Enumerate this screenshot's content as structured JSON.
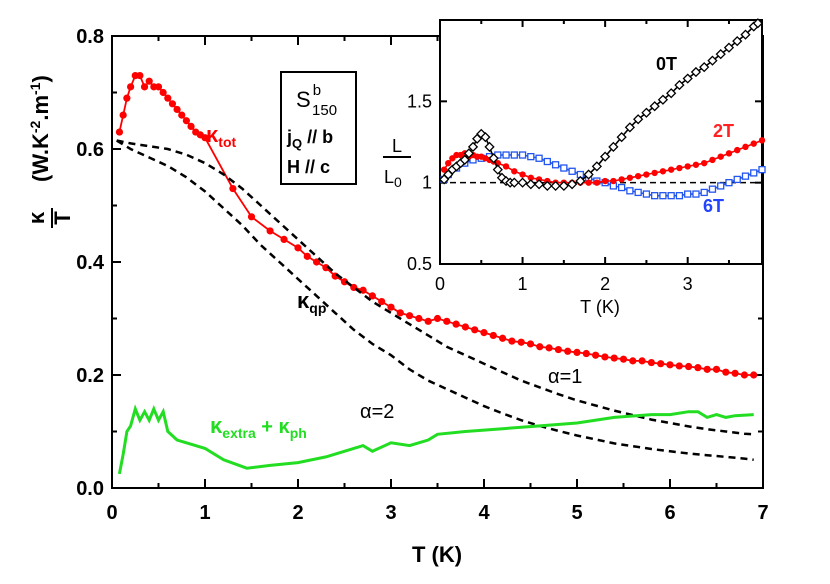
{
  "chart_data": [
    {
      "type": "line",
      "role": "main",
      "xlabel": "T (K)",
      "ylabel": "κ/T (W.K^-2.m^-1)",
      "ylabel_parts": {
        "numerator": "κ",
        "denominator": "T",
        "units": "(W.K",
        "exp1": "-2",
        "mid": ".m",
        "exp2": "-1",
        "close": ")"
      },
      "xlim": [
        0,
        7
      ],
      "ylim": [
        0,
        0.8
      ],
      "xticks": [
        0,
        1,
        2,
        3,
        4,
        5,
        6,
        7
      ],
      "xtick_labels": [
        "0",
        "1",
        "2",
        "3",
        "4",
        "5",
        "6",
        "7"
      ],
      "yticks": [
        0.0,
        0.2,
        0.4,
        0.6,
        0.8
      ],
      "ytick_labels": [
        "0.0",
        "0.2",
        "0.4",
        "0.6",
        "0.8"
      ],
      "series": [
        {
          "name": "κ_tot",
          "label_main": "κ",
          "label_sub": "tot",
          "color": "#ff0000",
          "style": "line+markers",
          "x": [
            0.08,
            0.12,
            0.16,
            0.2,
            0.25,
            0.3,
            0.35,
            0.4,
            0.45,
            0.5,
            0.55,
            0.6,
            0.65,
            0.7,
            0.75,
            0.8,
            0.85,
            0.9,
            0.95,
            1.0,
            1.3,
            1.5,
            1.7,
            1.85,
            2.0,
            2.1,
            2.2,
            2.3,
            2.4,
            2.5,
            2.6,
            2.7,
            2.8,
            2.9,
            3.0,
            3.1,
            3.2,
            3.3,
            3.4,
            3.5,
            3.6,
            3.7,
            3.8,
            3.9,
            4.0,
            4.1,
            4.2,
            4.3,
            4.4,
            4.5,
            4.6,
            4.7,
            4.8,
            4.9,
            5.0,
            5.1,
            5.2,
            5.3,
            5.4,
            5.5,
            5.6,
            5.7,
            5.8,
            5.9,
            6.0,
            6.1,
            6.2,
            6.3,
            6.4,
            6.5,
            6.6,
            6.7,
            6.8,
            6.9
          ],
          "y": [
            0.63,
            0.66,
            0.69,
            0.71,
            0.73,
            0.73,
            0.71,
            0.72,
            0.71,
            0.71,
            0.7,
            0.69,
            0.68,
            0.67,
            0.66,
            0.65,
            0.64,
            0.63,
            0.625,
            0.62,
            0.53,
            0.48,
            0.455,
            0.44,
            0.425,
            0.41,
            0.4,
            0.39,
            0.375,
            0.365,
            0.355,
            0.35,
            0.34,
            0.33,
            0.32,
            0.31,
            0.305,
            0.3,
            0.295,
            0.3,
            0.295,
            0.29,
            0.285,
            0.28,
            0.275,
            0.27,
            0.265,
            0.26,
            0.258,
            0.255,
            0.25,
            0.248,
            0.245,
            0.242,
            0.24,
            0.238,
            0.235,
            0.232,
            0.23,
            0.228,
            0.225,
            0.225,
            0.222,
            0.22,
            0.218,
            0.216,
            0.215,
            0.213,
            0.21,
            0.21,
            0.205,
            0.203,
            0.2,
            0.2
          ]
        },
        {
          "name": "κ_qp α=1",
          "label": "α=1",
          "color": "#000000",
          "style": "dashed",
          "x": [
            0.05,
            0.2,
            0.4,
            0.6,
            0.8,
            1.0,
            1.2,
            1.4,
            1.6,
            1.8,
            2.0,
            2.2,
            2.4,
            2.6,
            2.8,
            3.0,
            3.2,
            3.4,
            3.6,
            3.8,
            4.0,
            4.2,
            4.4,
            4.6,
            4.8,
            5.0,
            5.2,
            5.4,
            5.6,
            5.8,
            6.0,
            6.2,
            6.4,
            6.6,
            6.8,
            6.9
          ],
          "y": [
            0.615,
            0.61,
            0.605,
            0.6,
            0.59,
            0.575,
            0.555,
            0.53,
            0.5,
            0.47,
            0.44,
            0.41,
            0.38,
            0.355,
            0.33,
            0.31,
            0.29,
            0.27,
            0.25,
            0.235,
            0.22,
            0.205,
            0.19,
            0.178,
            0.166,
            0.155,
            0.146,
            0.137,
            0.129,
            0.121,
            0.115,
            0.109,
            0.104,
            0.1,
            0.096,
            0.095
          ]
        },
        {
          "name": "κ_qp α=2",
          "label": "α=2",
          "color": "#000000",
          "style": "dashed",
          "x": [
            0.05,
            0.2,
            0.4,
            0.6,
            0.8,
            1.0,
            1.2,
            1.4,
            1.6,
            1.8,
            2.0,
            2.2,
            2.4,
            2.6,
            2.8,
            3.0,
            3.2,
            3.4,
            3.6,
            3.8,
            4.0,
            4.2,
            4.4,
            4.6,
            4.8,
            5.0,
            5.2,
            5.4,
            5.6,
            5.8,
            6.0,
            6.2,
            6.4,
            6.6,
            6.8,
            6.9
          ],
          "y": [
            0.615,
            0.6,
            0.585,
            0.57,
            0.55,
            0.525,
            0.495,
            0.465,
            0.43,
            0.4,
            0.37,
            0.34,
            0.31,
            0.28,
            0.255,
            0.235,
            0.21,
            0.19,
            0.175,
            0.16,
            0.145,
            0.132,
            0.12,
            0.11,
            0.101,
            0.093,
            0.086,
            0.079,
            0.074,
            0.069,
            0.065,
            0.061,
            0.058,
            0.055,
            0.052,
            0.05
          ]
        },
        {
          "name": "κ_extra + κ_ph",
          "label_main": "κ",
          "label_sub": "extra",
          "label_mid": " + κ",
          "label_sub2": "ph",
          "color": "#22dd22",
          "style": "line",
          "x": [
            0.08,
            0.12,
            0.16,
            0.2,
            0.25,
            0.3,
            0.35,
            0.4,
            0.45,
            0.5,
            0.55,
            0.6,
            0.7,
            0.8,
            1.0,
            1.2,
            1.45,
            1.7,
            2.0,
            2.3,
            2.6,
            2.7,
            2.8,
            3.0,
            3.2,
            3.4,
            3.5,
            3.8,
            4.2,
            4.6,
            5.0,
            5.4,
            5.8,
            6.0,
            6.2,
            6.3,
            6.4,
            6.5,
            6.6,
            6.7,
            6.9
          ],
          "y": [
            0.025,
            0.06,
            0.1,
            0.11,
            0.14,
            0.12,
            0.135,
            0.12,
            0.14,
            0.12,
            0.135,
            0.1,
            0.085,
            0.08,
            0.07,
            0.05,
            0.035,
            0.04,
            0.045,
            0.055,
            0.07,
            0.075,
            0.065,
            0.08,
            0.075,
            0.085,
            0.095,
            0.1,
            0.105,
            0.11,
            0.115,
            0.125,
            0.13,
            0.13,
            0.135,
            0.135,
            0.125,
            0.13,
            0.125,
            0.128,
            0.13
          ]
        }
      ],
      "annotations": {
        "kqp_main": "κ",
        "kqp_sub": "qp",
        "alpha1": "α=1",
        "alpha2": "α=2",
        "box_line1_main": "S",
        "box_line1_sup": "b",
        "box_line1_sub": "150",
        "box_line2_main": "j",
        "box_line2_sub": "Q",
        "box_line2_rest": " // b",
        "box_line3": "H // c"
      }
    },
    {
      "type": "line",
      "role": "inset",
      "xlabel": "T (K)",
      "ylabel_num": "L",
      "ylabel_den_main": "L",
      "ylabel_den_sub": "0",
      "xlim": [
        0,
        3.9
      ],
      "ylim": [
        0.5,
        2.0
      ],
      "xticks": [
        0,
        1,
        2,
        3
      ],
      "xtick_labels": [
        "0",
        "1",
        "2",
        "3"
      ],
      "yticks": [
        0.5,
        1,
        1.5
      ],
      "ytick_labels": [
        "0.5",
        "1",
        "1.5"
      ],
      "reference_line": 1.0,
      "series": [
        {
          "name": "0T",
          "label": "0T",
          "label_color": "#000000",
          "color": "#000000",
          "marker": "diamond",
          "x": [
            0.05,
            0.1,
            0.15,
            0.2,
            0.25,
            0.3,
            0.35,
            0.4,
            0.45,
            0.5,
            0.55,
            0.6,
            0.65,
            0.7,
            0.75,
            0.8,
            0.85,
            0.9,
            1.0,
            1.1,
            1.2,
            1.3,
            1.4,
            1.5,
            1.6,
            1.7,
            1.8,
            1.9,
            2.0,
            2.1,
            2.2,
            2.3,
            2.4,
            2.5,
            2.6,
            2.7,
            2.8,
            2.9,
            3.0,
            3.1,
            3.2,
            3.3,
            3.4,
            3.5,
            3.6,
            3.7,
            3.8,
            3.85
          ],
          "y": [
            1.02,
            1.05,
            1.08,
            1.1,
            1.12,
            1.14,
            1.18,
            1.22,
            1.27,
            1.3,
            1.28,
            1.22,
            1.15,
            1.08,
            1.03,
            1.01,
            1.0,
            1.0,
            1.0,
            0.99,
            0.99,
            0.98,
            0.98,
            0.98,
            0.99,
            1.01,
            1.05,
            1.1,
            1.16,
            1.22,
            1.28,
            1.34,
            1.39,
            1.43,
            1.47,
            1.51,
            1.55,
            1.6,
            1.64,
            1.68,
            1.71,
            1.75,
            1.79,
            1.83,
            1.87,
            1.91,
            1.96,
            1.98
          ]
        },
        {
          "name": "2T",
          "label": "2T",
          "label_color": "#ff2222",
          "color": "#ff0000",
          "marker": "circle",
          "x": [
            0.05,
            0.1,
            0.15,
            0.2,
            0.25,
            0.3,
            0.35,
            0.4,
            0.45,
            0.5,
            0.55,
            0.6,
            0.65,
            0.7,
            0.8,
            0.9,
            1.0,
            1.1,
            1.2,
            1.3,
            1.4,
            1.5,
            1.6,
            1.7,
            1.8,
            1.9,
            2.0,
            2.1,
            2.2,
            2.3,
            2.4,
            2.5,
            2.6,
            2.7,
            2.8,
            2.9,
            3.0,
            3.1,
            3.2,
            3.3,
            3.4,
            3.5,
            3.6,
            3.7,
            3.8,
            3.9
          ],
          "y": [
            1.08,
            1.12,
            1.15,
            1.17,
            1.17,
            1.18,
            1.16,
            1.17,
            1.16,
            1.16,
            1.15,
            1.14,
            1.13,
            1.12,
            1.1,
            1.07,
            1.05,
            1.03,
            1.02,
            1.01,
            1.0,
            1.0,
            1.0,
            1.0,
            1.0,
            1.0,
            1.01,
            1.01,
            1.02,
            1.03,
            1.04,
            1.05,
            1.06,
            1.07,
            1.08,
            1.09,
            1.1,
            1.11,
            1.12,
            1.14,
            1.16,
            1.18,
            1.2,
            1.22,
            1.24,
            1.26
          ]
        },
        {
          "name": "6T",
          "label": "6T",
          "label_color": "#2244ff",
          "color": "#2255ee",
          "marker": "square",
          "x": [
            0.05,
            0.1,
            0.2,
            0.3,
            0.4,
            0.5,
            0.6,
            0.7,
            0.8,
            0.9,
            1.0,
            1.1,
            1.2,
            1.3,
            1.4,
            1.5,
            1.6,
            1.7,
            1.8,
            1.9,
            2.0,
            2.1,
            2.2,
            2.3,
            2.4,
            2.5,
            2.6,
            2.7,
            2.8,
            2.9,
            3.0,
            3.1,
            3.2,
            3.3,
            3.4,
            3.5,
            3.6,
            3.7,
            3.8,
            3.9
          ],
          "y": [
            1.02,
            1.05,
            1.09,
            1.12,
            1.14,
            1.15,
            1.16,
            1.17,
            1.17,
            1.17,
            1.17,
            1.16,
            1.15,
            1.13,
            1.11,
            1.09,
            1.07,
            1.05,
            1.03,
            1.01,
            1.0,
            0.98,
            0.97,
            0.95,
            0.94,
            0.93,
            0.92,
            0.92,
            0.92,
            0.92,
            0.93,
            0.93,
            0.94,
            0.96,
            0.98,
            1.0,
            1.02,
            1.04,
            1.06,
            1.08
          ]
        }
      ]
    }
  ]
}
